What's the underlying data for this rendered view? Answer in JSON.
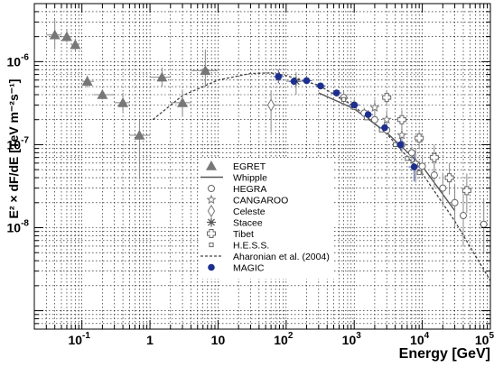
{
  "chart_data": {
    "type": "scatter",
    "xlabel": "Energy [GeV]",
    "ylabel": "E² × dF/dE [TeV m⁻²s⁻¹]",
    "xscale": "log",
    "yscale": "log",
    "xlim": [
      0.02,
      100000
    ],
    "ylim": [
      6e-10,
      5e-06
    ],
    "grid": true,
    "legend_position": "lower-center",
    "x_ticks": [
      {
        "base": "10",
        "exp": "-1",
        "value": 0.1
      },
      {
        "base": "1",
        "exp": "",
        "value": 1
      },
      {
        "base": "10",
        "exp": "",
        "value": 10
      },
      {
        "base": "10",
        "exp": "2",
        "value": 100
      },
      {
        "base": "10",
        "exp": "3",
        "value": 1000
      },
      {
        "base": "10",
        "exp": "4",
        "value": 10000
      },
      {
        "base": "10",
        "exp": "5",
        "value": 100000
      }
    ],
    "y_ticks": [
      {
        "base": "10",
        "exp": "-6",
        "value": 1e-06
      },
      {
        "base": "10",
        "exp": "-7",
        "value": 1e-07
      },
      {
        "base": "10",
        "exp": "-8",
        "value": 1e-08
      }
    ],
    "series": [
      {
        "name": "EGRET",
        "marker": "triangle",
        "color": "#777777",
        "points": [
          {
            "x": 0.04,
            "y": 2.1e-06,
            "xerr": [
              0.03,
              0.05
            ],
            "yerr": [
              1.4e-06,
              3.2e-06
            ]
          },
          {
            "x": 0.06,
            "y": 2e-06,
            "xerr": [
              0.05,
              0.07
            ],
            "yerr": [
              1.7e-06,
              2.4e-06
            ]
          },
          {
            "x": 0.08,
            "y": 1.6e-06,
            "xerr": [
              0.07,
              0.09
            ],
            "yerr": [
              1.35e-06,
              1.9e-06
            ]
          },
          {
            "x": 0.12,
            "y": 5.8e-07,
            "xerr": [
              0.1,
              0.15
            ],
            "yerr": [
              4.9e-07,
              6.8e-07
            ]
          },
          {
            "x": 0.2,
            "y": 4e-07,
            "xerr": [
              0.15,
              0.3
            ],
            "yerr": [
              3.5e-07,
              4.6e-07
            ]
          },
          {
            "x": 0.4,
            "y": 3.2e-07,
            "xerr": [
              0.3,
              0.5
            ],
            "yerr": [
              2.5e-07,
              4.2e-07
            ]
          },
          {
            "x": 0.7,
            "y": 1.3e-07,
            "xerr": [
              0.5,
              1.0
            ],
            "yerr": [
              3.8e-08,
              2e-07
            ]
          },
          {
            "x": 1.5,
            "y": 6.5e-07,
            "xerr": [
              1.0,
              2.0
            ],
            "yerr": [
              5e-07,
              8.5e-07
            ]
          },
          {
            "x": 3.0,
            "y": 3.2e-07,
            "xerr": [
              2.0,
              4.0
            ],
            "yerr": [
              2.2e-07,
              4.6e-07
            ]
          },
          {
            "x": 6.5,
            "y": 7.8e-07,
            "xerr": [
              4.0,
              10.0
            ],
            "yerr": [
              5e-07,
              1.4e-06
            ]
          }
        ]
      },
      {
        "name": "Whipple",
        "marker": "line",
        "color": "#555555",
        "points": [
          {
            "x": 300,
            "y": 4.2e-07
          },
          {
            "x": 1000,
            "y": 2.7e-07
          },
          {
            "x": 3000,
            "y": 1.4e-07
          },
          {
            "x": 10000,
            "y": 5.5e-08
          },
          {
            "x": 30000,
            "y": 1.6e-08
          }
        ]
      },
      {
        "name": "HEGRA",
        "marker": "circle-open",
        "color": "#666666",
        "points": [
          {
            "x": 700,
            "y": 3.7e-07,
            "yerr": [
              3e-07,
              4.4e-07
            ]
          },
          {
            "x": 1000,
            "y": 3e-07,
            "yerr": [
              2.6e-07,
              3.5e-07
            ]
          },
          {
            "x": 1400,
            "y": 2.4e-07,
            "yerr": [
              2.1e-07,
              2.8e-07
            ]
          },
          {
            "x": 2000,
            "y": 2e-07,
            "yerr": [
              1.7e-07,
              2.3e-07
            ]
          },
          {
            "x": 3000,
            "y": 1.5e-07,
            "yerr": [
              1.3e-07,
              1.8e-07
            ]
          },
          {
            "x": 5000,
            "y": 1e-07,
            "yerr": [
              8.5e-08,
              1.2e-07
            ]
          },
          {
            "x": 7000,
            "y": 8e-08,
            "yerr": [
              6.5e-08,
              9.5e-08
            ]
          },
          {
            "x": 10000,
            "y": 5.5e-08,
            "yerr": [
              4.2e-08,
              7e-08
            ]
          },
          {
            "x": 15000,
            "y": 4.3e-08,
            "yerr": [
              3e-08,
              6e-08
            ]
          },
          {
            "x": 20000,
            "y": 3e-08,
            "yerr": [
              1.8e-08,
              4.6e-08
            ]
          },
          {
            "x": 30000,
            "y": 2e-08,
            "yerr": [
              1e-08,
              3.4e-08
            ]
          },
          {
            "x": 40000,
            "y": 1.4e-08,
            "yerr": [
              6e-09,
              2.6e-08
            ]
          },
          {
            "x": 80000,
            "y": 1.1e-08,
            "yerr": [
              5e-09,
              2.2e-08
            ]
          }
        ]
      },
      {
        "name": "CANGAROO",
        "marker": "star",
        "color": "#777777",
        "points": [
          {
            "x": 2000,
            "y": 2.8e-07,
            "yerr": [
              2.2e-07,
              3.5e-07
            ]
          },
          {
            "x": 3000,
            "y": 2e-07,
            "yerr": [
              1.5e-07,
              2.6e-07
            ]
          },
          {
            "x": 5000,
            "y": 1.3e-07,
            "yerr": [
              9e-08,
              1.8e-07
            ]
          },
          {
            "x": 8000,
            "y": 6e-08,
            "yerr": [
              3.5e-08,
              9e-08
            ]
          }
        ]
      },
      {
        "name": "Celeste",
        "marker": "diamond-open",
        "color": "#777777",
        "points": [
          {
            "x": 60,
            "y": 3e-07,
            "xerr": [
              45,
              80
            ],
            "yerr": [
              1.4e-07,
              4.5e-07
            ]
          }
        ]
      },
      {
        "name": "Stacee",
        "marker": "asterisk",
        "color": "#555555",
        "points": [
          {
            "x": 140,
            "y": 5.8e-07,
            "xerr": [
              100,
              190
            ],
            "yerr": [
              4e-07,
              7.5e-07
            ]
          }
        ]
      },
      {
        "name": "Tibet",
        "marker": "cross-open",
        "color": "#666666",
        "points": [
          {
            "x": 3000,
            "y": 3.7e-07,
            "yerr": [
              3e-07,
              4.5e-07
            ]
          },
          {
            "x": 5000,
            "y": 2e-07,
            "yerr": [
              1.5e-07,
              2.6e-07
            ]
          },
          {
            "x": 9000,
            "y": 1.2e-07,
            "yerr": [
              9e-08,
              1.5e-07
            ]
          },
          {
            "x": 15000,
            "y": 7e-08,
            "yerr": [
              4.5e-08,
              1e-07
            ]
          },
          {
            "x": 25000,
            "y": 4e-08,
            "yerr": [
              2.5e-08,
              6e-08
            ]
          },
          {
            "x": 45000,
            "y": 2.8e-08,
            "yerr": [
              1.5e-08,
              4.5e-08
            ]
          }
        ]
      },
      {
        "name": "H.E.S.S.",
        "marker": "square-open",
        "color": "#666666",
        "points": [
          {
            "x": 700,
            "y": 3.5e-07
          },
          {
            "x": 1000,
            "y": 2.8e-07
          },
          {
            "x": 1500,
            "y": 2.1e-07
          },
          {
            "x": 2500,
            "y": 1.5e-07
          },
          {
            "x": 4000,
            "y": 1e-07
          },
          {
            "x": 6000,
            "y": 6.8e-08
          },
          {
            "x": 9000,
            "y": 4.6e-08
          }
        ]
      },
      {
        "name": "Aharonian et al. (2004)",
        "marker": "dashed-line",
        "color": "#444444",
        "points": [
          {
            "x": 1.1,
            "y": 2e-07
          },
          {
            "x": 3,
            "y": 3.9e-07
          },
          {
            "x": 10,
            "y": 6e-07
          },
          {
            "x": 30,
            "y": 7.2e-07
          },
          {
            "x": 60,
            "y": 7.3e-07
          },
          {
            "x": 100,
            "y": 6.8e-07
          },
          {
            "x": 300,
            "y": 5.2e-07
          },
          {
            "x": 1000,
            "y": 2.9e-07
          },
          {
            "x": 3000,
            "y": 1.35e-07
          },
          {
            "x": 10000,
            "y": 4.5e-08
          },
          {
            "x": 30000,
            "y": 1.2e-08
          },
          {
            "x": 100000,
            "y": 2.3e-09
          }
        ]
      },
      {
        "name": "MAGIC",
        "marker": "circle-filled",
        "color": "#1c2f8f",
        "points": [
          {
            "x": 77,
            "y": 6.6e-07,
            "xerr": [
              65,
              90
            ],
            "yerr": [
              5.5e-07,
              8e-07
            ]
          },
          {
            "x": 130,
            "y": 5.8e-07,
            "xerr": [
              110,
              150
            ],
            "yerr": [
              5.2e-07,
              6.4e-07
            ]
          },
          {
            "x": 200,
            "y": 5.9e-07,
            "xerr": [
              170,
              240
            ],
            "yerr": [
              5.4e-07,
              6.4e-07
            ]
          },
          {
            "x": 320,
            "y": 5.1e-07,
            "xerr": [
              270,
              380
            ],
            "yerr": [
              4.8e-07,
              5.4e-07
            ]
          },
          {
            "x": 550,
            "y": 4.2e-07,
            "xerr": [
              470,
              650
            ],
            "yerr": [
              3.9e-07,
              4.5e-07
            ]
          },
          {
            "x": 1000,
            "y": 3e-07,
            "xerr": [
              850,
              1200
            ],
            "yerr": [
              2.75e-07,
              3.3e-07
            ]
          },
          {
            "x": 1600,
            "y": 2.3e-07,
            "xerr": [
              1350,
              1900
            ],
            "yerr": [
              2.05e-07,
              2.6e-07
            ]
          },
          {
            "x": 2800,
            "y": 1.6e-07,
            "xerr": [
              2350,
              3300
            ],
            "yerr": [
              1.4e-07,
              1.85e-07
            ]
          },
          {
            "x": 4800,
            "y": 1e-07,
            "xerr": [
              4000,
              5800
            ],
            "yerr": [
              8.5e-08,
              1.2e-07
            ]
          },
          {
            "x": 7600,
            "y": 5.4e-08,
            "xerr": [
              6300,
              9000
            ],
            "yerr": [
              3.6e-08,
              8e-08
            ]
          }
        ]
      }
    ]
  }
}
